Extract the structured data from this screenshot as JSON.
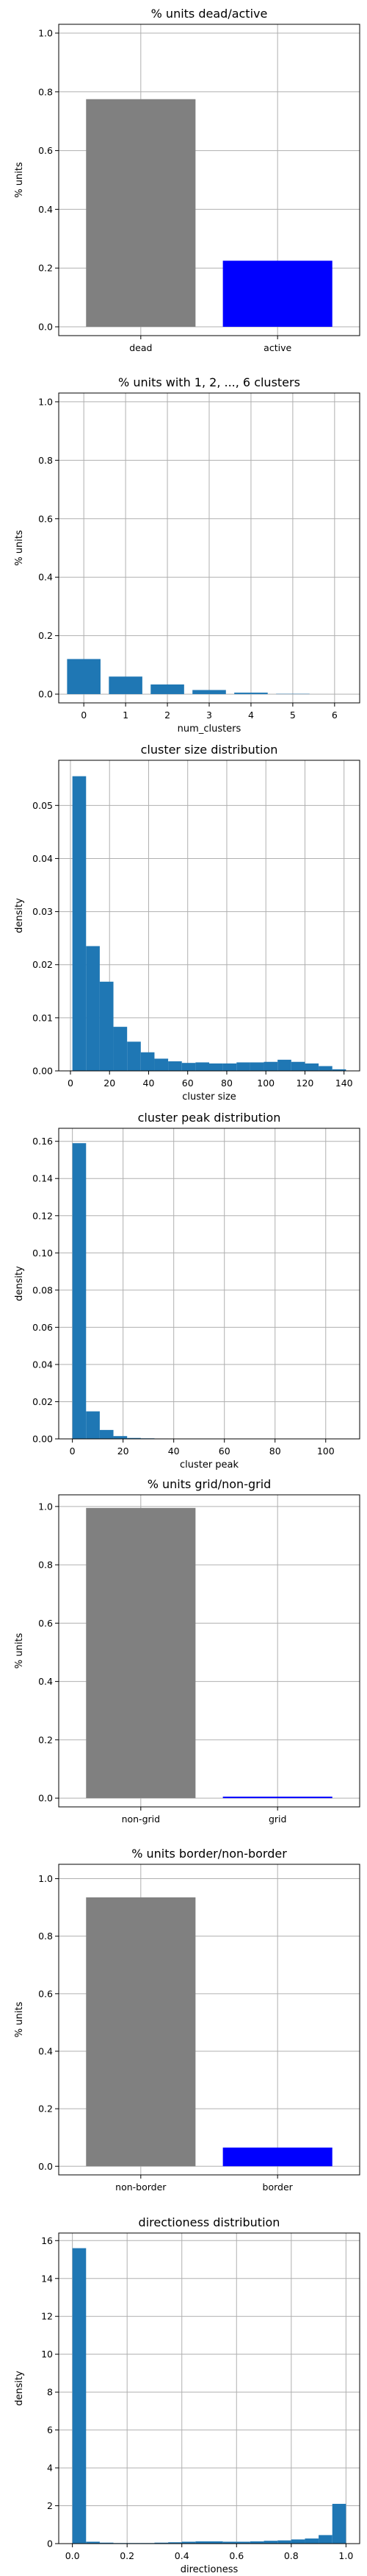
{
  "chart_data": [
    {
      "type": "bar",
      "title": "% units dead/active",
      "xlabel": "",
      "ylabel": "% units",
      "categories": [
        "dead",
        "active"
      ],
      "values": [
        0.775,
        0.225
      ],
      "colors": [
        "#808080",
        "#0000ff"
      ],
      "ylim": [
        -0.03,
        1.03
      ],
      "yticks": [
        "0.0",
        "0.2",
        "0.4",
        "0.6",
        "0.8",
        "1.0"
      ],
      "grid": true
    },
    {
      "type": "bar",
      "title": "% units with 1, 2, ..., 6 clusters",
      "xlabel": "num_clusters",
      "ylabel": "% units",
      "categories": [
        "0",
        "1",
        "2",
        "3",
        "4",
        "5",
        "6"
      ],
      "values": [
        0.12,
        0.06,
        0.033,
        0.014,
        0.005,
        0.001,
        0.0
      ],
      "colors": [
        "#1f77b4"
      ],
      "ylim": [
        -0.03,
        1.03
      ],
      "yticks": [
        "0.0",
        "0.2",
        "0.4",
        "0.6",
        "0.8",
        "1.0"
      ],
      "grid": true
    },
    {
      "type": "bar",
      "title": "cluster size distribution",
      "xlabel": "cluster size",
      "ylabel": "density",
      "bin_start": 1,
      "bin_width": 7,
      "values": [
        0.0555,
        0.0235,
        0.0168,
        0.0083,
        0.0055,
        0.0035,
        0.0023,
        0.0018,
        0.0015,
        0.0016,
        0.0014,
        0.0014,
        0.0016,
        0.0016,
        0.0017,
        0.0021,
        0.0017,
        0.0014,
        0.0009,
        0.0003
      ],
      "colors": [
        "#1f77b4"
      ],
      "xlim": [
        -6,
        148
      ],
      "ylim": [
        0,
        0.0585
      ],
      "xticks": [
        "0",
        "20",
        "40",
        "60",
        "80",
        "100",
        "120",
        "140"
      ],
      "yticks": [
        "0.00",
        "0.01",
        "0.02",
        "0.03",
        "0.04",
        "0.05"
      ],
      "grid": true
    },
    {
      "type": "bar",
      "title": "cluster peak distribution",
      "xlabel": "cluster peak",
      "ylabel": "density",
      "bin_start": 0,
      "bin_width": 5.4,
      "values": [
        0.159,
        0.0148,
        0.0048,
        0.0015,
        0.0005,
        0.0003,
        0.0002,
        0.0001,
        0.0001,
        0.0,
        0.0,
        0.0,
        0.0,
        0.0,
        0.0,
        0.0,
        0.0,
        0.0,
        0.0,
        0.0
      ],
      "colors": [
        "#1f77b4"
      ],
      "xlim": [
        -5.4,
        113.4
      ],
      "ylim": [
        0,
        0.167
      ],
      "xticks": [
        "0",
        "20",
        "40",
        "60",
        "80",
        "100"
      ],
      "yticks": [
        "0.00",
        "0.02",
        "0.04",
        "0.06",
        "0.08",
        "0.10",
        "0.12",
        "0.14",
        "0.16"
      ],
      "grid": true
    },
    {
      "type": "bar",
      "title": "% units grid/non-grid",
      "xlabel": "",
      "ylabel": "% units",
      "categories": [
        "non-grid",
        "grid"
      ],
      "values": [
        0.995,
        0.005
      ],
      "colors": [
        "#808080",
        "#0000ff"
      ],
      "ylim": [
        -0.03,
        1.04
      ],
      "yticks": [
        "0.0",
        "0.2",
        "0.4",
        "0.6",
        "0.8",
        "1.0"
      ],
      "grid": true
    },
    {
      "type": "bar",
      "title": "% units border/non-border",
      "xlabel": "",
      "ylabel": "% units",
      "categories": [
        "non-border",
        "border"
      ],
      "values": [
        0.935,
        0.065
      ],
      "colors": [
        "#808080",
        "#0000ff"
      ],
      "ylim": [
        -0.03,
        1.05
      ],
      "yticks": [
        "0.0",
        "0.2",
        "0.4",
        "0.6",
        "0.8",
        "1.0"
      ],
      "grid": true
    },
    {
      "type": "bar",
      "title": "directioness distribution",
      "xlabel": "directioness",
      "ylabel": "density",
      "bin_start": 0,
      "bin_width": 0.05,
      "values": [
        15.6,
        0.1,
        0.05,
        0.03,
        0.03,
        0.03,
        0.05,
        0.07,
        0.1,
        0.12,
        0.12,
        0.1,
        0.1,
        0.12,
        0.15,
        0.17,
        0.22,
        0.27,
        0.45,
        2.1
      ],
      "colors": [
        "#1f77b4"
      ],
      "xlim": [
        -0.05,
        1.05
      ],
      "ylim": [
        0,
        16.4
      ],
      "xticks": [
        "0.0",
        "0.2",
        "0.4",
        "0.6",
        "0.8",
        "1.0"
      ],
      "yticks": [
        "0",
        "2",
        "4",
        "6",
        "8",
        "10",
        "12",
        "14",
        "16"
      ],
      "grid": true
    }
  ]
}
